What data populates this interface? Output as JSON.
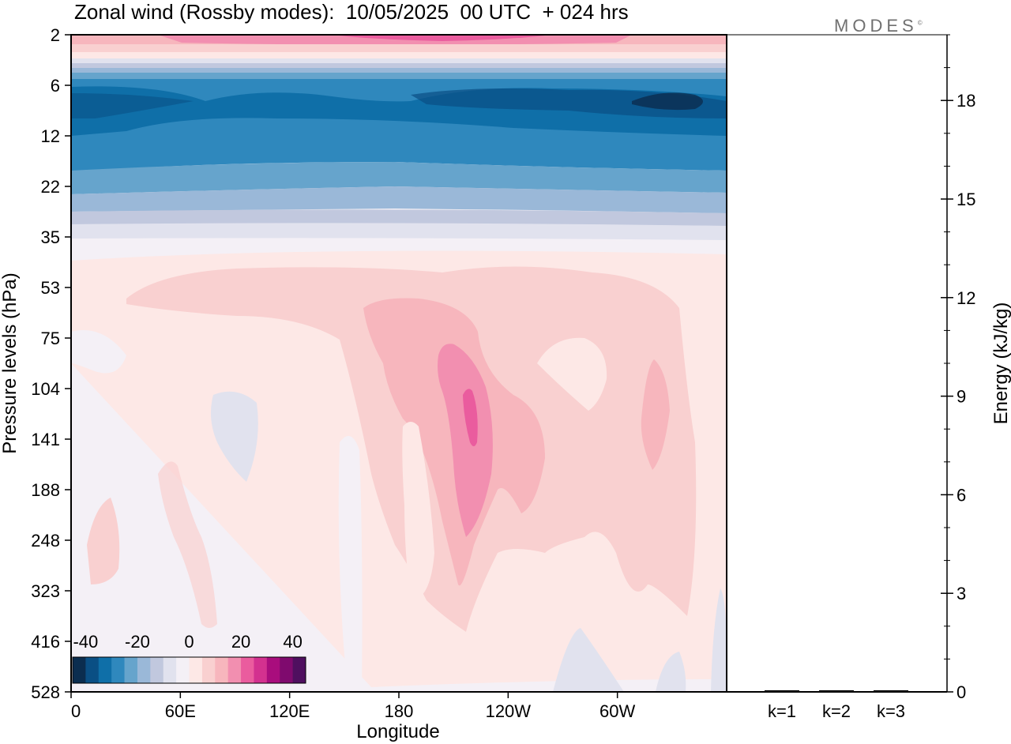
{
  "title": "Zonal wind (Rossby modes):  10/05/2025  00 UTC  + 024 hrs",
  "logo": {
    "text": "MODES",
    "mark": "©"
  },
  "chart_data": [
    {
      "type": "heatmap",
      "title": "Zonal wind (Rossby modes):  10/05/2025  00 UTC  + 024 hrs",
      "xlabel": "Longitude",
      "ylabel": "Pressure levels (hPa)",
      "x_ticks": [
        "0",
        "60E",
        "120E",
        "180",
        "120W",
        "60W"
      ],
      "x_tick_degrees": [
        0,
        60,
        120,
        180,
        240,
        300
      ],
      "xlim": [
        0,
        360
      ],
      "y_ticks": [
        "2",
        "6",
        "12",
        "22",
        "35",
        "53",
        "75",
        "104",
        "141",
        "188",
        "248",
        "323",
        "416",
        "528"
      ],
      "y_scale": "level index (top = 2 hPa)",
      "colorbar": {
        "tick_labels": [
          "-40",
          "-20",
          "0",
          "20",
          "40"
        ],
        "colors": [
          "#0b2d4f",
          "#0a4f84",
          "#0f6fa8",
          "#2f88bd",
          "#66a4cc",
          "#9ab8d8",
          "#c1c8de",
          "#e1e2ee",
          "#f4f0f6",
          "#fde8e6",
          "#f9d0d0",
          "#f7b6bd",
          "#f28fb0",
          "#ea5c9e",
          "#d3318f",
          "#a90d7d",
          "#7f0a6e",
          "#4f0f5f"
        ],
        "placement": "bottom-left inset"
      },
      "features": [
        {
          "description_label": "easterly band",
          "approx_levels_hPa": "6-22",
          "approx_value": -35
        },
        {
          "description_label": "westerly maximum",
          "approx_longitude": "160W",
          "approx_levels_hPa": "104-141",
          "approx_value": 25
        }
      ]
    },
    {
      "type": "bar",
      "categories": [
        "k=1",
        "k=2",
        "k=3"
      ],
      "values": [
        0.03,
        0.01,
        0.01
      ],
      "ylabel": "Energy (kJ/kg)",
      "ylim": [
        0,
        20
      ],
      "y_ticks": [
        "0",
        "3",
        "6",
        "9",
        "12",
        "15",
        "18"
      ],
      "y_tick_values": [
        0,
        3,
        6,
        9,
        12,
        15,
        18
      ]
    }
  ]
}
